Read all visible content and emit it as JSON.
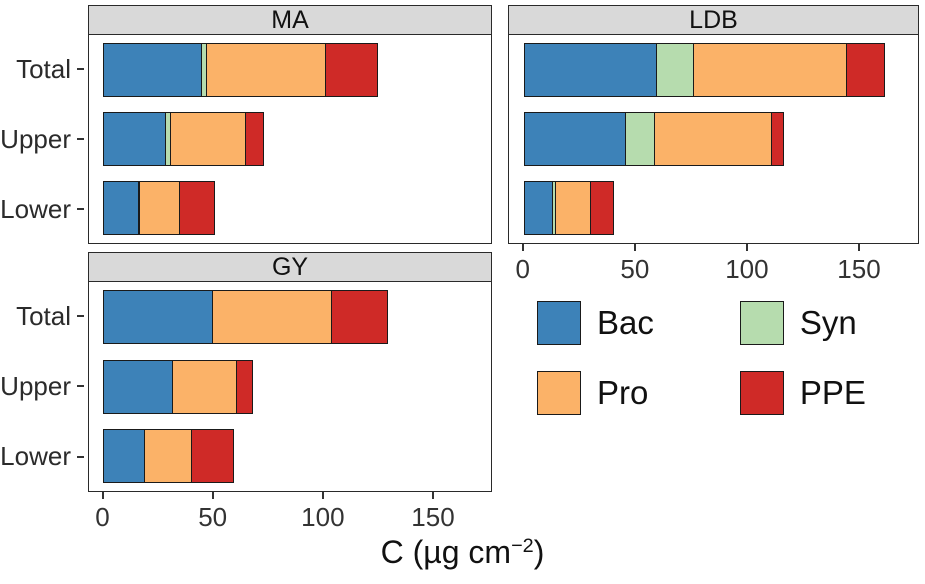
{
  "chart_data": {
    "type": "bar",
    "orientation": "horizontal",
    "stacked": true,
    "facets": [
      "MA",
      "LDB",
      "GY"
    ],
    "categories": [
      "Total",
      "Upper",
      "Lower"
    ],
    "series_order": [
      "Bac",
      "Syn",
      "Pro",
      "PPE"
    ],
    "colors": {
      "Bac": "#3d82b8",
      "Syn": "#b6dcae",
      "Pro": "#fbb268",
      "PPE": "#cf2a27"
    },
    "x_ticks": [
      0,
      50,
      100,
      150
    ],
    "x_range": [
      0,
      177
    ],
    "xlabel": "C (µg cm−2)",
    "grid": false,
    "legend_position": "bottom-right",
    "panels": [
      {
        "id": "MA",
        "title": "MA",
        "rows": [
          {
            "label": "Total",
            "Bac": 47,
            "Syn": 3,
            "Pro": 57,
            "PPE": 25
          },
          {
            "label": "Upper",
            "Bac": 30,
            "Syn": 3,
            "Pro": 36,
            "PPE": 9
          },
          {
            "label": "Lower",
            "Bac": 17,
            "Syn": 1,
            "Pro": 20,
            "PPE": 17
          }
        ]
      },
      {
        "id": "LDB",
        "title": "LDB",
        "rows": [
          {
            "label": "Total",
            "Bac": 62,
            "Syn": 18,
            "Pro": 72,
            "PPE": 18
          },
          {
            "label": "Upper",
            "Bac": 48,
            "Syn": 14,
            "Pro": 55,
            "PPE": 6
          },
          {
            "label": "Lower",
            "Bac": 14,
            "Syn": 2,
            "Pro": 17,
            "PPE": 11
          }
        ]
      },
      {
        "id": "GY",
        "title": "GY",
        "rows": [
          {
            "label": "Total",
            "Bac": 52,
            "Syn": 0,
            "Pro": 57,
            "PPE": 27
          },
          {
            "label": "Upper",
            "Bac": 33,
            "Syn": 0,
            "Pro": 31,
            "PPE": 8
          },
          {
            "label": "Lower",
            "Bac": 20,
            "Syn": 0,
            "Pro": 23,
            "PPE": 20
          }
        ]
      }
    ],
    "legend": {
      "items": [
        {
          "label": "Bac",
          "color": "#3d82b8"
        },
        {
          "label": "Pro",
          "color": "#fbb268"
        },
        {
          "label": "Syn",
          "color": "#b6dcae"
        },
        {
          "label": "PPE",
          "color": "#cf2a27"
        }
      ]
    }
  },
  "axis_title": {
    "prefix": "C (µg cm",
    "sup": "−2",
    "suffix": ")"
  }
}
